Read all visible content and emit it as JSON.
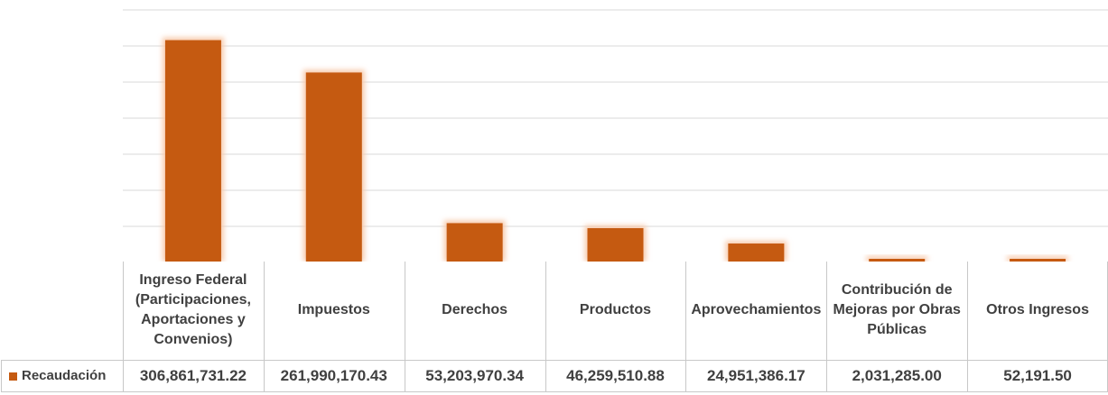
{
  "chart_data": {
    "type": "bar",
    "categories": [
      "Ingreso Federal (Participaciones, Aportaciones y Convenios)",
      "Impuestos",
      "Derechos",
      "Productos",
      "Aprovechamientos",
      "Contribución de Mejoras por Obras Públicas",
      "Otros Ingresos"
    ],
    "series": [
      {
        "name": "Recaudación",
        "values": [
          306861731.22,
          261990170.43,
          53203970.34,
          46259510.88,
          24951386.17,
          2031285.0,
          52191.5
        ],
        "labels": [
          "306,861,731.22",
          "261,990,170.43",
          "53,203,970.34",
          "46,259,510.88",
          "24,951,386.17",
          "2,031,285.00",
          "52,191.50"
        ]
      }
    ],
    "ylim": [
      0,
      350000000
    ],
    "grid": true,
    "legend": "table-left",
    "bar_color": "#c55a11",
    "glow_color": "#f8cbad"
  }
}
